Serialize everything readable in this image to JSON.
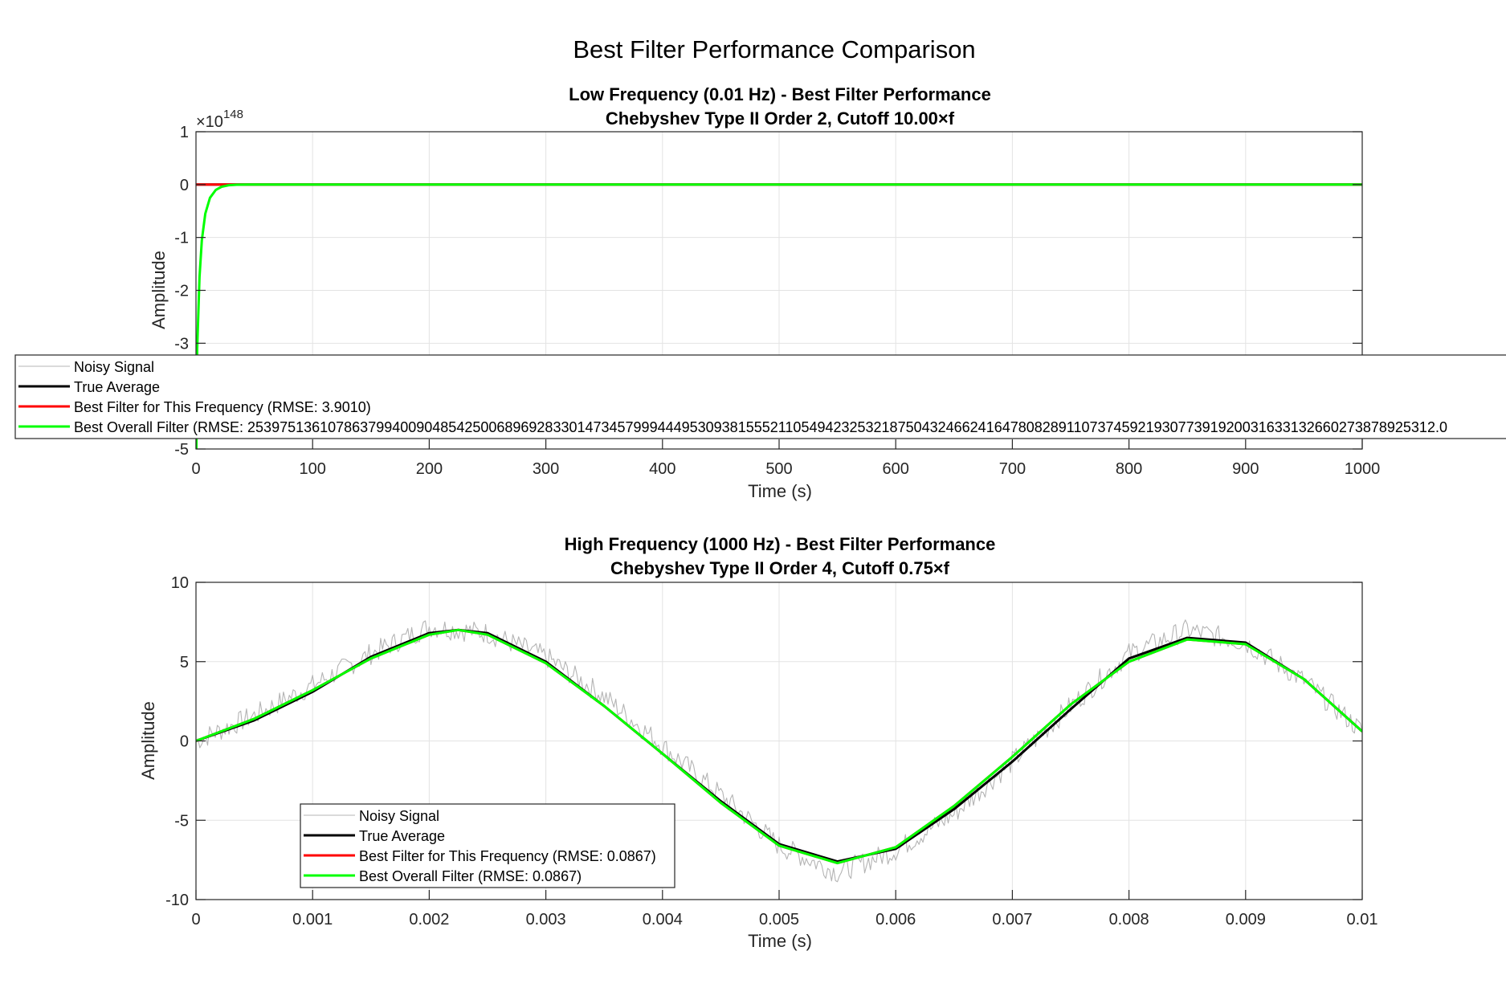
{
  "figure": {
    "title": "Best Filter Performance Comparison"
  },
  "colors": {
    "noisy": "#b4b4b4",
    "true_avg": "#000000",
    "best_freq": "#ff0000",
    "best_overall": "#00ff00",
    "grid": "#e3e3e3",
    "axis": "#262626"
  },
  "chart_data": [
    {
      "type": "line",
      "title": "Low Frequency (0.01 Hz) - Best Filter Performance",
      "subtitle": "Chebyshev Type II Order 2, Cutoff 10.00×f",
      "xlabel": "Time (s)",
      "ylabel": "Amplitude",
      "xlim": [
        0,
        1000
      ],
      "ylim": [
        -5,
        1
      ],
      "y_exponent_label": "×10",
      "y_exponent": "148",
      "xticks": [
        0,
        100,
        200,
        300,
        400,
        500,
        600,
        700,
        800,
        900,
        1000
      ],
      "xtick_labels": [
        "0",
        "100",
        "200",
        "300",
        "400",
        "500",
        "600",
        "700",
        "800",
        "900",
        "1000"
      ],
      "yticks": [
        1,
        0,
        -1,
        -2,
        -3,
        -4,
        -5
      ],
      "ytick_labels": [
        "1",
        "0",
        "-1",
        "-2",
        "-3",
        "",
        "-5"
      ],
      "grid": true,
      "legend_position": "spanning figure width, lower part of axes",
      "series": [
        {
          "name": "Noisy Signal",
          "x": [
            0,
            1000
          ],
          "y": [
            0,
            0
          ]
        },
        {
          "name": "True Average",
          "x": [
            0,
            1000
          ],
          "y": [
            0,
            0
          ]
        },
        {
          "name": "Best Filter for This Frequency (RMSE: 3.9010)",
          "x": [
            0,
            10,
            20,
            30,
            40,
            1000
          ],
          "y": [
            0,
            0,
            0,
            0,
            0,
            0
          ]
        },
        {
          "name": "Best Overall Filter (RMSE: 253975136107863799400904854250068969283301473457999444953093815552110549423253218750432466241647808289110737459219307739192003163313266027387892531 2.0",
          "x": [
            0,
            1,
            3,
            5,
            8,
            12,
            17,
            22,
            28,
            35,
            45,
            60,
            1000
          ],
          "y": [
            -6.0,
            -3.1,
            -1.75,
            -1.05,
            -0.55,
            -0.25,
            -0.1,
            -0.04,
            -0.012,
            -0.003,
            0,
            0,
            0
          ]
        }
      ],
      "legend_entries": [
        "Noisy Signal",
        "True Average",
        "Best Filter for This Frequency (RMSE: 3.9010)",
        "Best Overall Filter (RMSE: 2539751361078637994009048542500689692833014734579994449530938155521105494232532187504324662416478082891107374592193077391920031633132660273878925312.0"
      ]
    },
    {
      "type": "line",
      "title": "High Frequency (1000 Hz) - Best Filter Performance",
      "subtitle": "Chebyshev Type II Order 4, Cutoff 0.75×f",
      "xlabel": "Time (s)",
      "ylabel": "Amplitude",
      "xlim": [
        0,
        0.01
      ],
      "ylim": [
        -10,
        10
      ],
      "xticks": [
        0,
        0.001,
        0.002,
        0.003,
        0.004,
        0.005,
        0.006,
        0.007,
        0.008,
        0.009,
        0.01
      ],
      "xtick_labels": [
        "0",
        "0.001",
        "0.002",
        "0.003",
        "0.004",
        "0.005",
        "0.006",
        "0.007",
        "0.008",
        "0.009",
        "0.01"
      ],
      "yticks": [
        10,
        5,
        0,
        -5,
        -10
      ],
      "ytick_labels": [
        "10",
        "5",
        "0",
        "-5",
        "-10"
      ],
      "grid": true,
      "legend_position": "lower-left",
      "series": [
        {
          "name": "Noisy Signal",
          "x": [
            0,
            0.0005,
            0.001,
            0.0015,
            0.002,
            0.0025,
            0.003,
            0.0035,
            0.004,
            0.0045,
            0.005,
            0.0055,
            0.006,
            0.0065,
            0.007,
            0.0075,
            0.008,
            0.0085,
            0.009,
            0.0095,
            0.01
          ],
          "y": [
            0,
            1.6,
            3.5,
            5.5,
            7.2,
            6.8,
            5.3,
            2.8,
            -0.3,
            -3.4,
            -6.6,
            -8.3,
            -6.9,
            -4.6,
            -1.3,
            2.2,
            5.5,
            7.0,
            6.2,
            3.8,
            0.6
          ]
        },
        {
          "name": "True Average",
          "x": [
            0,
            0.0005,
            0.001,
            0.0015,
            0.002,
            0.00225,
            0.0025,
            0.003,
            0.0035,
            0.004,
            0.0045,
            0.005,
            0.0055,
            0.006,
            0.0065,
            0.007,
            0.0075,
            0.008,
            0.0085,
            0.009,
            0.0095,
            0.01
          ],
          "y": [
            0,
            1.3,
            3.1,
            5.3,
            6.8,
            7.0,
            6.8,
            5.0,
            2.2,
            -0.8,
            -3.8,
            -6.5,
            -7.6,
            -6.8,
            -4.3,
            -1.3,
            2.0,
            5.2,
            6.5,
            6.2,
            3.9,
            0.6
          ]
        },
        {
          "name": "Best Filter for This Frequency (RMSE: 0.0867)",
          "x": [
            0,
            0.0005,
            0.001,
            0.0015,
            0.002,
            0.00225,
            0.0025,
            0.003,
            0.0035,
            0.004,
            0.0045,
            0.005,
            0.0055,
            0.006,
            0.0065,
            0.007,
            0.0075,
            0.008,
            0.0085,
            0.009,
            0.0095,
            0.01
          ],
          "y": [
            0,
            1.4,
            3.2,
            5.2,
            6.7,
            7.0,
            6.7,
            4.9,
            2.2,
            -0.8,
            -3.9,
            -6.6,
            -7.7,
            -6.7,
            -4.1,
            -1.0,
            2.3,
            5.0,
            6.4,
            6.1,
            3.9,
            0.6
          ]
        },
        {
          "name": "Best Overall Filter (RMSE: 0.0867)",
          "x": [
            0,
            0.0005,
            0.001,
            0.0015,
            0.002,
            0.00225,
            0.0025,
            0.003,
            0.0035,
            0.004,
            0.0045,
            0.005,
            0.0055,
            0.006,
            0.0065,
            0.007,
            0.0075,
            0.008,
            0.0085,
            0.009,
            0.0095,
            0.01
          ],
          "y": [
            0,
            1.4,
            3.2,
            5.2,
            6.7,
            7.0,
            6.7,
            4.9,
            2.2,
            -0.8,
            -3.9,
            -6.6,
            -7.7,
            -6.7,
            -4.1,
            -1.0,
            2.3,
            5.0,
            6.4,
            6.1,
            3.9,
            0.6
          ]
        }
      ],
      "legend_entries": [
        "Noisy Signal",
        "True Average",
        "Best Filter for This Frequency (RMSE: 0.0867)",
        "Best Overall Filter (RMSE: 0.0867)"
      ]
    }
  ]
}
